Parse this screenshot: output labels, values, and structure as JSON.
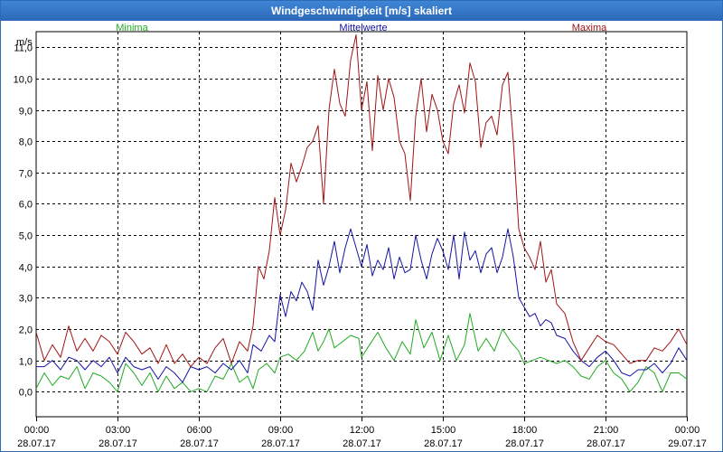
{
  "window": {
    "title": "Windgeschwindigkeit [m/s] skaliert"
  },
  "colors": {
    "minima": "#22aa22",
    "mittel": "#1414a6",
    "maxima": "#a01414",
    "grid": "#000000"
  },
  "chart_data": {
    "type": "line",
    "title": "Windgeschwindigkeit [m/s] skaliert",
    "ylabel": "m/s",
    "ylim": [
      -0.8,
      11.5
    ],
    "xlim": [
      0,
      24
    ],
    "yticks": [
      "0,0",
      "1,0",
      "2,0",
      "3,0",
      "4,0",
      "5,0",
      "6,0",
      "7,0",
      "8,0",
      "9,0",
      "10,0",
      "11,0"
    ],
    "ytick_values": [
      0,
      1,
      2,
      3,
      4,
      5,
      6,
      7,
      8,
      9,
      10,
      11
    ],
    "xticks": [
      {
        "time": "00:00",
        "date": "28.07.17",
        "h": 0
      },
      {
        "time": "03:00",
        "date": "28.07.17",
        "h": 3
      },
      {
        "time": "06:00",
        "date": "28.07.17",
        "h": 6
      },
      {
        "time": "09:00",
        "date": "28.07.17",
        "h": 9
      },
      {
        "time": "12:00",
        "date": "28.07.17",
        "h": 12
      },
      {
        "time": "15:00",
        "date": "28.07.17",
        "h": 15
      },
      {
        "time": "18:00",
        "date": "28.07.17",
        "h": 18
      },
      {
        "time": "21:00",
        "date": "28.07.17",
        "h": 21
      },
      {
        "time": "00:00",
        "date": "29.07.17",
        "h": 24
      }
    ],
    "grid": true,
    "legend": [
      "Minima",
      "Mittelwerte",
      "Maxima"
    ],
    "series": [
      {
        "name": "Minima",
        "color": "#22aa22",
        "points": [
          [
            0,
            0.1
          ],
          [
            0.3,
            0.6
          ],
          [
            0.6,
            0.2
          ],
          [
            0.9,
            0.5
          ],
          [
            1.2,
            0.4
          ],
          [
            1.5,
            0.8
          ],
          [
            1.8,
            0.1
          ],
          [
            2.1,
            0.6
          ],
          [
            2.4,
            0.5
          ],
          [
            2.7,
            0.3
          ],
          [
            3.0,
            0.0
          ],
          [
            3.3,
            0.9
          ],
          [
            3.6,
            0.6
          ],
          [
            3.9,
            0.2
          ],
          [
            4.2,
            0.6
          ],
          [
            4.5,
            0.0
          ],
          [
            4.8,
            0.5
          ],
          [
            5.1,
            0.1
          ],
          [
            5.4,
            0.3
          ],
          [
            5.7,
            0.0
          ],
          [
            6.0,
            0.1
          ],
          [
            6.3,
            0.0
          ],
          [
            6.6,
            0.5
          ],
          [
            6.9,
            0.4
          ],
          [
            7.2,
            0.9
          ],
          [
            7.5,
            0.3
          ],
          [
            7.8,
            0.5
          ],
          [
            8.0,
            0.1
          ],
          [
            8.2,
            0.7
          ],
          [
            8.5,
            0.9
          ],
          [
            8.8,
            0.6
          ],
          [
            9.0,
            1.1
          ],
          [
            9.3,
            1.2
          ],
          [
            9.6,
            1.0
          ],
          [
            9.9,
            1.3
          ],
          [
            10.2,
            1.9
          ],
          [
            10.4,
            1.3
          ],
          [
            10.6,
            1.6
          ],
          [
            10.8,
            2.0
          ],
          [
            11.0,
            1.4
          ],
          [
            11.3,
            1.6
          ],
          [
            11.6,
            1.8
          ],
          [
            11.9,
            1.7
          ],
          [
            12.0,
            1.1
          ],
          [
            12.3,
            1.5
          ],
          [
            12.6,
            1.9
          ],
          [
            12.9,
            1.4
          ],
          [
            13.2,
            1.0
          ],
          [
            13.5,
            1.6
          ],
          [
            13.8,
            1.2
          ],
          [
            14.0,
            2.3
          ],
          [
            14.3,
            1.4
          ],
          [
            14.6,
            1.9
          ],
          [
            14.9,
            1.0
          ],
          [
            15.2,
            1.8
          ],
          [
            15.5,
            1.0
          ],
          [
            15.8,
            1.5
          ],
          [
            16.0,
            2.5
          ],
          [
            16.3,
            1.3
          ],
          [
            16.6,
            1.7
          ],
          [
            16.9,
            1.3
          ],
          [
            17.2,
            2.0
          ],
          [
            17.5,
            1.6
          ],
          [
            17.8,
            1.3
          ],
          [
            18.0,
            0.9
          ],
          [
            18.3,
            1.0
          ],
          [
            18.6,
            1.1
          ],
          [
            18.9,
            1.0
          ],
          [
            19.2,
            0.9
          ],
          [
            19.5,
            1.0
          ],
          [
            19.8,
            0.8
          ],
          [
            20.1,
            0.5
          ],
          [
            20.4,
            0.4
          ],
          [
            20.7,
            0.8
          ],
          [
            21.0,
            1.0
          ],
          [
            21.3,
            0.6
          ],
          [
            21.6,
            0.4
          ],
          [
            21.9,
            0.0
          ],
          [
            22.2,
            0.3
          ],
          [
            22.5,
            0.8
          ],
          [
            22.8,
            0.6
          ],
          [
            23.1,
            0.0
          ],
          [
            23.4,
            0.6
          ],
          [
            23.7,
            0.6
          ],
          [
            24.0,
            0.4
          ]
        ]
      },
      {
        "name": "Mittelwerte",
        "color": "#1414a6",
        "points": [
          [
            0,
            0.8
          ],
          [
            0.3,
            0.8
          ],
          [
            0.6,
            1.0
          ],
          [
            0.9,
            0.7
          ],
          [
            1.2,
            1.1
          ],
          [
            1.5,
            1.0
          ],
          [
            1.8,
            0.7
          ],
          [
            2.1,
            1.0
          ],
          [
            2.4,
            0.8
          ],
          [
            2.7,
            1.1
          ],
          [
            3.0,
            0.6
          ],
          [
            3.3,
            1.1
          ],
          [
            3.6,
            0.8
          ],
          [
            3.9,
            0.7
          ],
          [
            4.2,
            0.8
          ],
          [
            4.5,
            0.4
          ],
          [
            4.8,
            0.8
          ],
          [
            5.1,
            0.6
          ],
          [
            5.4,
            0.3
          ],
          [
            5.7,
            0.8
          ],
          [
            6.0,
            0.7
          ],
          [
            6.3,
            0.8
          ],
          [
            6.6,
            0.6
          ],
          [
            6.9,
            0.9
          ],
          [
            7.2,
            0.7
          ],
          [
            7.5,
            1.0
          ],
          [
            7.8,
            0.6
          ],
          [
            8.0,
            1.5
          ],
          [
            8.3,
            1.3
          ],
          [
            8.6,
            1.8
          ],
          [
            8.8,
            1.6
          ],
          [
            9.0,
            3.1
          ],
          [
            9.2,
            2.4
          ],
          [
            9.4,
            3.2
          ],
          [
            9.6,
            2.9
          ],
          [
            9.8,
            3.5
          ],
          [
            10.0,
            3.2
          ],
          [
            10.2,
            2.6
          ],
          [
            10.4,
            4.2
          ],
          [
            10.6,
            3.4
          ],
          [
            10.8,
            4.0
          ],
          [
            11.0,
            4.8
          ],
          [
            11.2,
            3.8
          ],
          [
            11.4,
            4.6
          ],
          [
            11.6,
            5.2
          ],
          [
            11.8,
            4.6
          ],
          [
            12.0,
            4.0
          ],
          [
            12.2,
            4.7
          ],
          [
            12.4,
            3.7
          ],
          [
            12.6,
            4.2
          ],
          [
            12.8,
            3.9
          ],
          [
            13.0,
            4.6
          ],
          [
            13.2,
            3.6
          ],
          [
            13.4,
            4.3
          ],
          [
            13.6,
            3.8
          ],
          [
            13.8,
            3.9
          ],
          [
            14.0,
            5.0
          ],
          [
            14.2,
            4.2
          ],
          [
            14.4,
            3.6
          ],
          [
            14.6,
            4.4
          ],
          [
            14.8,
            4.9
          ],
          [
            15.0,
            4.5
          ],
          [
            15.2,
            3.9
          ],
          [
            15.4,
            5.0
          ],
          [
            15.6,
            3.6
          ],
          [
            15.8,
            5.1
          ],
          [
            16.0,
            4.2
          ],
          [
            16.2,
            4.5
          ],
          [
            16.4,
            3.8
          ],
          [
            16.6,
            4.4
          ],
          [
            16.8,
            4.6
          ],
          [
            17.0,
            3.8
          ],
          [
            17.2,
            4.3
          ],
          [
            17.4,
            5.2
          ],
          [
            17.6,
            4.3
          ],
          [
            17.8,
            3.0
          ],
          [
            18.0,
            2.7
          ],
          [
            18.2,
            2.4
          ],
          [
            18.4,
            2.5
          ],
          [
            18.6,
            2.1
          ],
          [
            18.8,
            2.3
          ],
          [
            19.0,
            2.2
          ],
          [
            19.2,
            1.8
          ],
          [
            19.5,
            1.7
          ],
          [
            19.8,
            1.3
          ],
          [
            20.1,
            1.0
          ],
          [
            20.4,
            0.8
          ],
          [
            20.7,
            1.1
          ],
          [
            21.0,
            1.3
          ],
          [
            21.3,
            1.0
          ],
          [
            21.6,
            0.6
          ],
          [
            21.9,
            0.5
          ],
          [
            22.2,
            0.7
          ],
          [
            22.5,
            0.7
          ],
          [
            22.8,
            0.9
          ],
          [
            23.1,
            0.6
          ],
          [
            23.4,
            0.9
          ],
          [
            23.7,
            1.4
          ],
          [
            24.0,
            1.0
          ]
        ]
      },
      {
        "name": "Maxima",
        "color": "#a01414",
        "points": [
          [
            0,
            1.9
          ],
          [
            0.3,
            1.0
          ],
          [
            0.6,
            1.5
          ],
          [
            0.9,
            1.1
          ],
          [
            1.2,
            2.1
          ],
          [
            1.5,
            1.3
          ],
          [
            1.8,
            1.7
          ],
          [
            2.1,
            1.3
          ],
          [
            2.4,
            1.8
          ],
          [
            2.7,
            1.6
          ],
          [
            3.0,
            1.2
          ],
          [
            3.3,
            1.9
          ],
          [
            3.6,
            1.6
          ],
          [
            3.9,
            1.2
          ],
          [
            4.2,
            1.4
          ],
          [
            4.5,
            0.9
          ],
          [
            4.8,
            1.5
          ],
          [
            5.1,
            0.9
          ],
          [
            5.4,
            1.2
          ],
          [
            5.7,
            0.8
          ],
          [
            6.0,
            1.1
          ],
          [
            6.3,
            0.9
          ],
          [
            6.6,
            1.4
          ],
          [
            6.9,
            1.7
          ],
          [
            7.2,
            0.9
          ],
          [
            7.5,
            1.6
          ],
          [
            7.8,
            1.3
          ],
          [
            8.0,
            2.1
          ],
          [
            8.2,
            4.0
          ],
          [
            8.4,
            3.6
          ],
          [
            8.6,
            4.5
          ],
          [
            8.8,
            6.2
          ],
          [
            9.0,
            5.0
          ],
          [
            9.2,
            5.8
          ],
          [
            9.4,
            7.3
          ],
          [
            9.6,
            6.7
          ],
          [
            9.8,
            7.2
          ],
          [
            10.0,
            7.8
          ],
          [
            10.2,
            8.0
          ],
          [
            10.4,
            8.5
          ],
          [
            10.6,
            6.0
          ],
          [
            10.8,
            9.0
          ],
          [
            11.0,
            10.3
          ],
          [
            11.2,
            9.2
          ],
          [
            11.4,
            8.8
          ],
          [
            11.6,
            10.6
          ],
          [
            11.8,
            11.4
          ],
          [
            12.0,
            9.0
          ],
          [
            12.2,
            9.9
          ],
          [
            12.4,
            7.7
          ],
          [
            12.6,
            10.1
          ],
          [
            12.8,
            9.0
          ],
          [
            13.0,
            10.0
          ],
          [
            13.2,
            9.4
          ],
          [
            13.4,
            8.0
          ],
          [
            13.6,
            7.6
          ],
          [
            13.8,
            6.1
          ],
          [
            14.0,
            8.8
          ],
          [
            14.2,
            10.0
          ],
          [
            14.4,
            8.3
          ],
          [
            14.6,
            9.5
          ],
          [
            14.8,
            9.0
          ],
          [
            15.0,
            8.0
          ],
          [
            15.2,
            7.6
          ],
          [
            15.4,
            9.2
          ],
          [
            15.6,
            9.8
          ],
          [
            15.8,
            8.9
          ],
          [
            16.0,
            10.5
          ],
          [
            16.2,
            9.9
          ],
          [
            16.4,
            7.8
          ],
          [
            16.6,
            8.6
          ],
          [
            16.8,
            8.8
          ],
          [
            17.0,
            8.2
          ],
          [
            17.2,
            9.8
          ],
          [
            17.4,
            10.2
          ],
          [
            17.6,
            8.0
          ],
          [
            17.8,
            5.2
          ],
          [
            18.0,
            4.6
          ],
          [
            18.2,
            4.3
          ],
          [
            18.4,
            3.9
          ],
          [
            18.6,
            4.8
          ],
          [
            18.8,
            3.5
          ],
          [
            19.0,
            3.9
          ],
          [
            19.2,
            2.8
          ],
          [
            19.5,
            2.5
          ],
          [
            19.8,
            1.6
          ],
          [
            20.1,
            1.0
          ],
          [
            20.4,
            1.4
          ],
          [
            20.7,
            1.8
          ],
          [
            21.0,
            1.6
          ],
          [
            21.3,
            1.5
          ],
          [
            21.6,
            1.2
          ],
          [
            21.9,
            0.9
          ],
          [
            22.2,
            1.0
          ],
          [
            22.5,
            1.0
          ],
          [
            22.8,
            1.4
          ],
          [
            23.1,
            1.3
          ],
          [
            23.4,
            1.6
          ],
          [
            23.7,
            2.0
          ],
          [
            24.0,
            1.5
          ]
        ]
      }
    ]
  }
}
